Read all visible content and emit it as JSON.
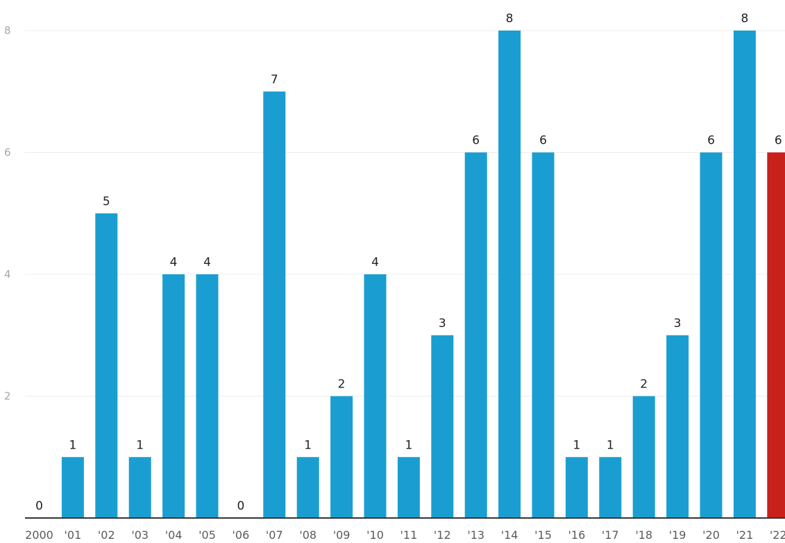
{
  "chart_data": {
    "type": "bar",
    "title": "",
    "xlabel": "",
    "ylabel": "",
    "categories": [
      "2000",
      "'01",
      "'02",
      "'03",
      "'04",
      "'05",
      "'06",
      "'07",
      "'08",
      "'09",
      "'10",
      "'11",
      "'12",
      "'13",
      "'14",
      "'15",
      "'16",
      "'17",
      "'18",
      "'19",
      "'20",
      "'21",
      "'22"
    ],
    "values": [
      0,
      1,
      5,
      1,
      4,
      4,
      0,
      7,
      1,
      2,
      4,
      1,
      3,
      6,
      8,
      6,
      1,
      1,
      2,
      3,
      6,
      8,
      6
    ],
    "data_labels": [
      "0",
      "1",
      "5",
      "1",
      "4",
      "4",
      "0",
      "7",
      "1",
      "2",
      "4",
      "1",
      "3",
      "6",
      "8",
      "6",
      "1",
      "1",
      "2",
      "3",
      "6",
      "8",
      "6"
    ],
    "ylim": [
      0,
      8
    ],
    "y_ticks": [
      "2",
      "4",
      "6",
      "8"
    ],
    "grid": true,
    "legend": "none",
    "colors": {
      "bar": "#1a9ed1",
      "highlight": "#c8211c",
      "highlight_index": 22
    }
  }
}
